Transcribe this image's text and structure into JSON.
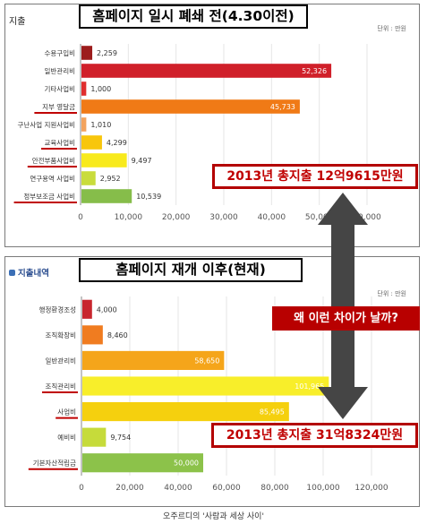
{
  "caption": "오주르디의 '사람과 세상 사이'",
  "annotation": {
    "question": "왜 이런 차이가 날까?",
    "arrow_color": "#454545"
  },
  "chart_data": [
    {
      "type": "bar",
      "orientation": "horizontal",
      "corner_label": "지출",
      "unit_label": "단위 : 만원",
      "headline": "홈페이지 일시 폐쇄 전(4.30이전)",
      "total_callout": "2013년 총지출 12억9615만원",
      "categories": [
        "수용구입비",
        "일반관리비",
        "기타사업비",
        "지부 영달금",
        "구난사업 지원사업비",
        "교육사업비",
        "안전부품사업비",
        "연구용역 사업비",
        "정부보조금 사업비"
      ],
      "underlined": [
        false,
        false,
        false,
        true,
        false,
        true,
        true,
        false,
        true
      ],
      "values": [
        2259,
        52326,
        1000,
        45733,
        1010,
        4299,
        9497,
        2952,
        10539
      ],
      "value_labels": [
        "2,259",
        "52,326",
        "1,000",
        "45,733",
        "1,010",
        "4,299",
        "9,497",
        "2,952",
        "10,539"
      ],
      "colors": [
        "#9c1c1c",
        "#d0202a",
        "#e02e2e",
        "#f07a16",
        "#f3a35e",
        "#f8c60c",
        "#f8ea1c",
        "#c9dc3c",
        "#86bd4a"
      ],
      "xlim": [
        0,
        60000
      ],
      "xticks": [
        0,
        10000,
        20000,
        30000,
        40000,
        50000,
        60000
      ],
      "xtick_labels": [
        "0",
        "10,000",
        "20,000",
        "30,000",
        "40,000",
        "50,000",
        "60,000"
      ]
    },
    {
      "type": "bar",
      "orientation": "horizontal",
      "corner_label": "지출내역",
      "unit_label": "단위 : 만원",
      "headline": "홈페이지 재개 이후(현재)",
      "total_callout": "2013년 총지출 31억8324만원",
      "categories": [
        "행정환경조성",
        "조직확장비",
        "일반관리비",
        "조직관리비",
        "사업비",
        "예비비",
        "기본자산적립금"
      ],
      "underlined": [
        false,
        false,
        false,
        true,
        true,
        false,
        true
      ],
      "values": [
        4000,
        8460,
        58650,
        101965,
        85495,
        9754,
        50000
      ],
      "value_labels": [
        "4,000",
        "8,460",
        "58,650",
        "101,965",
        "85,495",
        "9,754",
        "50,000"
      ],
      "colors": [
        "#c8262e",
        "#f07c20",
        "#f5a51a",
        "#f8ee2a",
        "#f5d00e",
        "#c6db3a",
        "#8cc24a"
      ],
      "xlim": [
        0,
        120000
      ],
      "xticks": [
        0,
        20000,
        40000,
        60000,
        80000,
        100000,
        120000
      ],
      "xtick_labels": [
        "0",
        "20,000",
        "40,000",
        "60,000",
        "80,000",
        "100,000",
        "120,000"
      ]
    }
  ]
}
